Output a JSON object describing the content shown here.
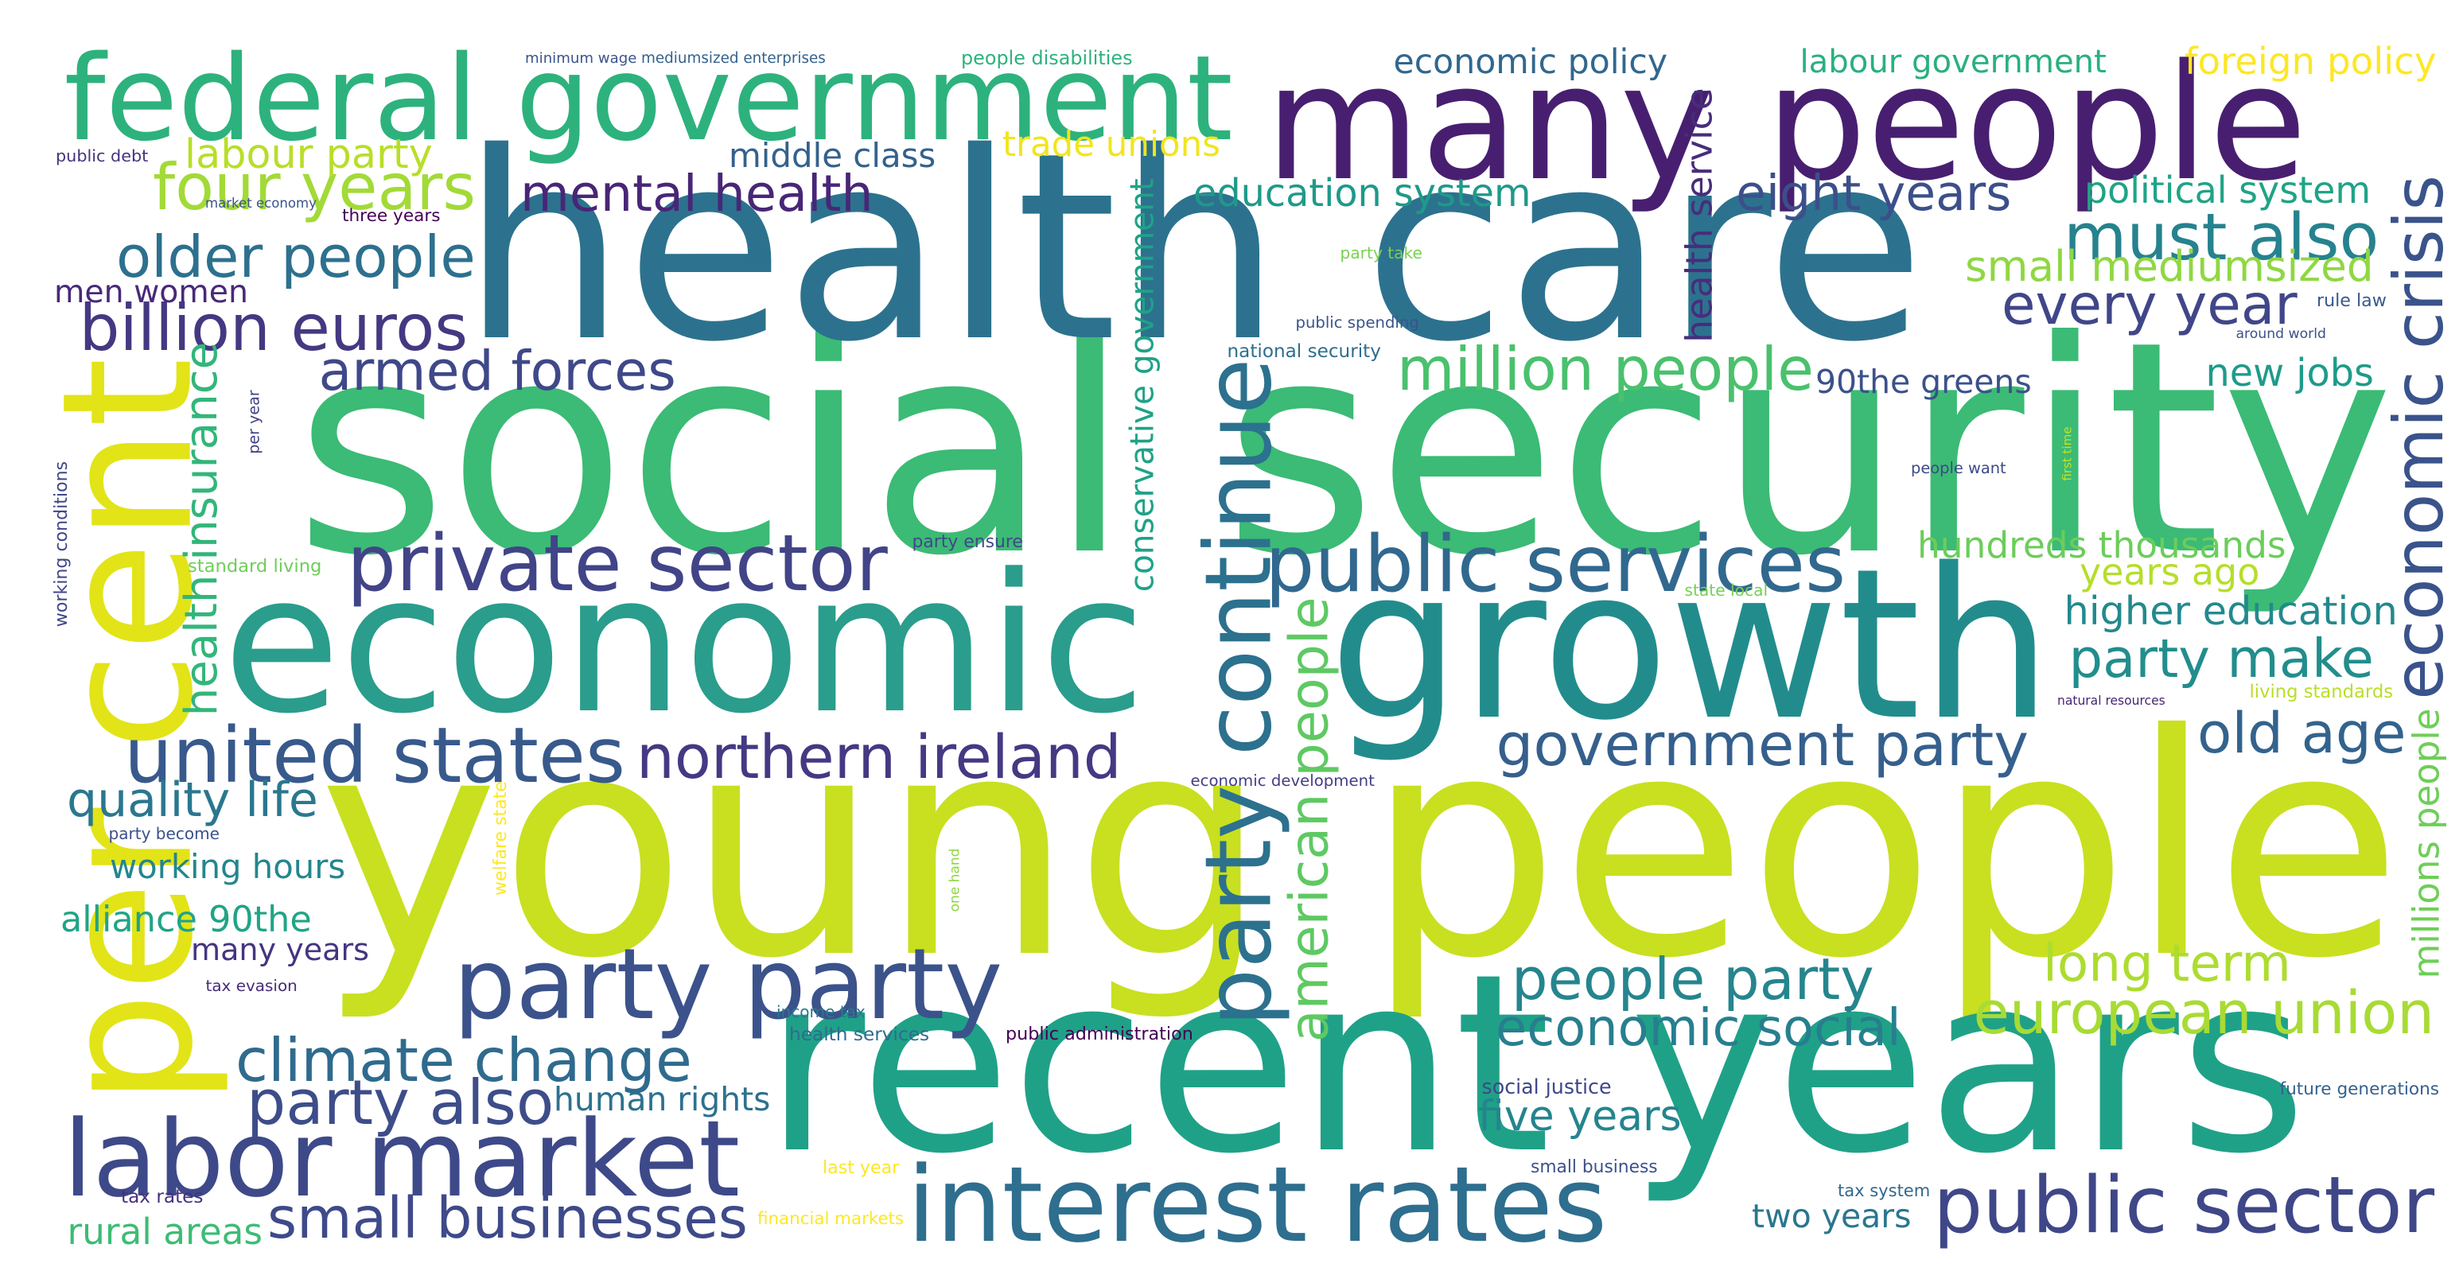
{
  "words": [
    {
      "text": "young people",
      "color": "#c8e020"
    },
    {
      "text": "social security",
      "color": "#3bbb75"
    },
    {
      "text": "health care",
      "color": "#2c728e"
    },
    {
      "text": "economic",
      "color": "#2a9d8c"
    },
    {
      "text": "growth",
      "color": "#228c8d"
    },
    {
      "text": "recent years",
      "color": "#1fa188"
    },
    {
      "text": "many people",
      "color": "#481f70"
    },
    {
      "text": "federal government",
      "color": "#2db27d"
    },
    {
      "text": "per cent",
      "color": "#e2e418"
    },
    {
      "text": "labor market",
      "color": "#3e4989"
    },
    {
      "text": "party party",
      "color": "#3b528b"
    },
    {
      "text": "interest rates",
      "color": "#2e6e8e"
    },
    {
      "text": "party continue",
      "color": "#2c718e"
    },
    {
      "text": "public services",
      "color": "#31688e"
    },
    {
      "text": "private sector",
      "color": "#414487"
    },
    {
      "text": "united states",
      "color": "#38598c"
    },
    {
      "text": "northern ireland",
      "color": "#443983"
    },
    {
      "text": "government party",
      "color": "#355f8d"
    },
    {
      "text": "public sector",
      "color": "#3f4788"
    },
    {
      "text": "economic crisis",
      "color": "#3a538b"
    },
    {
      "text": "climate change",
      "color": "#2f6b8e"
    },
    {
      "text": "european union",
      "color": "#a8db34"
    },
    {
      "text": "people party",
      "color": "#25858e"
    },
    {
      "text": "economic social",
      "color": "#277f8e"
    },
    {
      "text": "million people",
      "color": "#4ac16d"
    },
    {
      "text": "american people",
      "color": "#5ec962"
    },
    {
      "text": "four years",
      "color": "#a2da37"
    },
    {
      "text": "mental health",
      "color": "#482677"
    },
    {
      "text": "older people",
      "color": "#2d708e"
    },
    {
      "text": "billion euros",
      "color": "#453882"
    },
    {
      "text": "armed forces",
      "color": "#3f4889"
    },
    {
      "text": "must also",
      "color": "#26828e"
    },
    {
      "text": "every year",
      "color": "#404688"
    },
    {
      "text": "health insurance",
      "color": "#32b67a"
    },
    {
      "text": "years ago",
      "color": "#b5de2b"
    },
    {
      "text": "party make",
      "color": "#228d8d"
    },
    {
      "text": "old age",
      "color": "#33638d"
    },
    {
      "text": "long term",
      "color": "#addc30"
    },
    {
      "text": "party also",
      "color": "#3d4d8a"
    },
    {
      "text": "small businesses",
      "color": "#3e4a89"
    },
    {
      "text": "small mediumsized",
      "color": "#90d743"
    },
    {
      "text": "conservative government",
      "color": "#1fa287"
    },
    {
      "text": "education system",
      "color": "#1f998a"
    },
    {
      "text": "economic policy",
      "color": "#31678e"
    },
    {
      "text": "labour government",
      "color": "#2ab07f"
    },
    {
      "text": "foreign policy",
      "color": "#fde725"
    },
    {
      "text": "labour party",
      "color": "#b8de29"
    },
    {
      "text": "middle class",
      "color": "#34618d"
    },
    {
      "text": "trade unions",
      "color": "#f1e51d"
    },
    {
      "text": "eight years",
      "color": "#3c4f8a"
    },
    {
      "text": "political system",
      "color": "#20a386"
    },
    {
      "text": "health service",
      "color": "#472d7b"
    },
    {
      "text": "90the greens",
      "color": "#3b518b"
    },
    {
      "text": "new jobs",
      "color": "#1e9b8a"
    },
    {
      "text": "hundreds thousands",
      "color": "#6ccd5a"
    },
    {
      "text": "higher education",
      "color": "#23898e"
    },
    {
      "text": "millions people",
      "color": "#6ece58"
    },
    {
      "text": "men women",
      "color": "#482979"
    },
    {
      "text": "quality life",
      "color": "#2a778e"
    },
    {
      "text": "working hours",
      "color": "#24868e"
    },
    {
      "text": "alliance 90the",
      "color": "#20a486"
    },
    {
      "text": "many years",
      "color": "#463480"
    },
    {
      "text": "human rights",
      "color": "#2d718e"
    },
    {
      "text": "five years",
      "color": "#25848e"
    },
    {
      "text": "rural areas",
      "color": "#3dbc74"
    },
    {
      "text": "two years",
      "color": "#2a768e"
    },
    {
      "text": "minimum wage",
      "color": "#3a548c"
    },
    {
      "text": "mediumsized enterprises",
      "color": "#33628d"
    },
    {
      "text": "people disabilities",
      "color": "#2db27d"
    },
    {
      "text": "public debt",
      "color": "#46327e"
    },
    {
      "text": "market economy",
      "color": "#39558c"
    },
    {
      "text": "three years",
      "color": "#440154"
    },
    {
      "text": "party take",
      "color": "#7ad151"
    },
    {
      "text": "public spending",
      "color": "#3a548c"
    },
    {
      "text": "national security",
      "color": "#2e6e8e"
    },
    {
      "text": "rule law",
      "color": "#38598c"
    },
    {
      "text": "around world",
      "color": "#3b528b"
    },
    {
      "text": "first time",
      "color": "#cae11f"
    },
    {
      "text": "people want",
      "color": "#3e4989"
    },
    {
      "text": "party ensure",
      "color": "#3e4989"
    },
    {
      "text": "standard living",
      "color": "#6ece58"
    },
    {
      "text": "per year",
      "color": "#414487"
    },
    {
      "text": "working conditions",
      "color": "#404688"
    },
    {
      "text": "state local",
      "color": "#75d054"
    },
    {
      "text": "natural resources",
      "color": "#482475"
    },
    {
      "text": "living standards",
      "color": "#bade28"
    },
    {
      "text": "economic development",
      "color": "#433e85"
    },
    {
      "text": "welfare state",
      "color": "#fde725"
    },
    {
      "text": "party become",
      "color": "#3b518b"
    },
    {
      "text": "one hand",
      "color": "#90d743"
    },
    {
      "text": "tax evasion",
      "color": "#472c7a"
    },
    {
      "text": "income tax",
      "color": "#2a788e"
    },
    {
      "text": "health services",
      "color": "#2f6c8e"
    },
    {
      "text": "public administration",
      "color": "#440154"
    },
    {
      "text": "social justice",
      "color": "#3f4889"
    },
    {
      "text": "future generations",
      "color": "#34608d"
    },
    {
      "text": "last year",
      "color": "#fde725"
    },
    {
      "text": "small business",
      "color": "#3b528b"
    },
    {
      "text": "tax system",
      "color": "#31688e"
    },
    {
      "text": "tax rates",
      "color": "#46307e"
    },
    {
      "text": "financial markets",
      "color": "#fde725"
    }
  ]
}
